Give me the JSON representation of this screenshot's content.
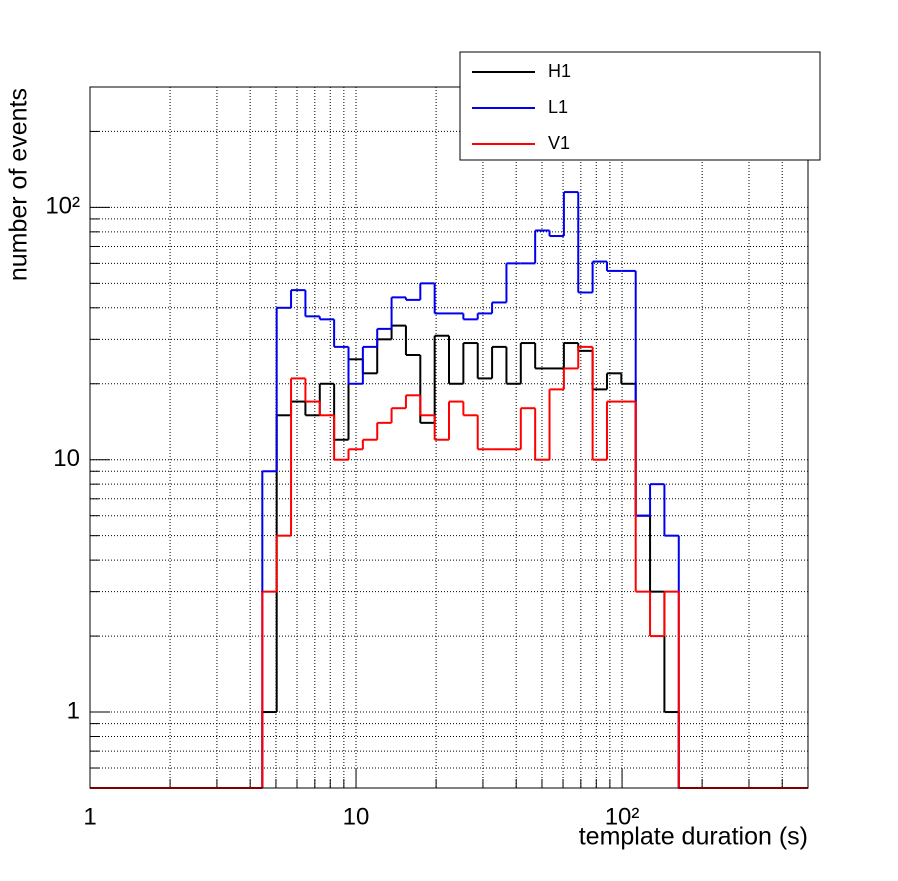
{
  "chart_data": {
    "type": "histogram",
    "x_label": "template duration (s)",
    "y_label": "number of events",
    "xscale": "log",
    "yscale": "log",
    "grid": true,
    "legend_position": "top-right",
    "xlim": [
      1,
      500
    ],
    "ylim": [
      0.5,
      300
    ],
    "xticks": [
      1,
      10,
      {
        "value": 100,
        "label": "10²"
      }
    ],
    "yticks": [
      1,
      10,
      {
        "value": 100,
        "label": "10²"
      }
    ],
    "bins": [
      1,
      1.1323,
      1.2822,
      1.4519,
      1.6441,
      1.8617,
      2.1081,
      2.3871,
      2.7031,
      3.0609,
      3.466,
      3.9248,
      4.4442,
      5.0325,
      5.6985,
      6.4528,
      7.3069,
      8.274,
      9.3691,
      10.609,
      12.013,
      13.603,
      15.404,
      17.443,
      19.751,
      22.361,
      25.321,
      28.672,
      32.467,
      36.764,
      41.63,
      47.14,
      53.38,
      60.445,
      68.446,
      77.505,
      87.764,
      99.38,
      112.53,
      127.43,
      144.29,
      163.39,
      185.02,
      209.51,
      237.24,
      268.64,
      304.19,
      344.45,
      390.04,
      441.67,
      500
    ],
    "series": [
      {
        "name": "H1",
        "color": "#000000",
        "values": [
          0,
          0,
          0,
          0,
          0,
          0,
          0,
          0,
          0,
          0,
          0,
          0,
          1,
          15,
          17,
          15,
          20,
          12,
          25,
          22,
          30,
          34,
          26,
          14,
          31,
          20,
          29,
          21,
          28,
          20,
          29,
          23,
          23,
          29,
          27,
          19,
          22,
          20,
          6,
          3,
          1,
          0,
          0,
          0,
          0,
          0,
          0,
          0,
          0,
          0
        ]
      },
      {
        "name": "L1",
        "color": "#0000ee",
        "values": [
          0,
          0,
          0,
          0,
          0,
          0,
          0,
          0,
          0,
          0,
          0,
          0,
          9,
          40,
          47,
          37,
          36,
          28,
          20,
          28,
          33,
          44,
          43,
          50,
          38,
          38,
          36,
          38,
          42,
          60,
          60,
          81,
          77,
          115,
          46,
          61,
          56,
          56,
          6,
          8,
          5,
          0,
          0,
          0,
          0,
          0,
          0,
          0,
          0,
          0
        ]
      },
      {
        "name": "V1",
        "color": "#ff0000",
        "values": [
          0,
          0,
          0,
          0,
          0,
          0,
          0,
          0,
          0,
          0,
          0,
          0,
          3,
          5,
          21,
          17,
          15,
          10,
          11,
          12,
          14,
          16,
          18,
          15,
          12,
          17,
          15,
          11,
          11,
          11,
          16,
          10,
          19,
          23,
          28,
          10,
          17,
          17,
          3,
          2,
          3,
          0,
          0,
          0,
          0,
          0,
          0,
          0,
          0,
          0
        ]
      }
    ]
  }
}
